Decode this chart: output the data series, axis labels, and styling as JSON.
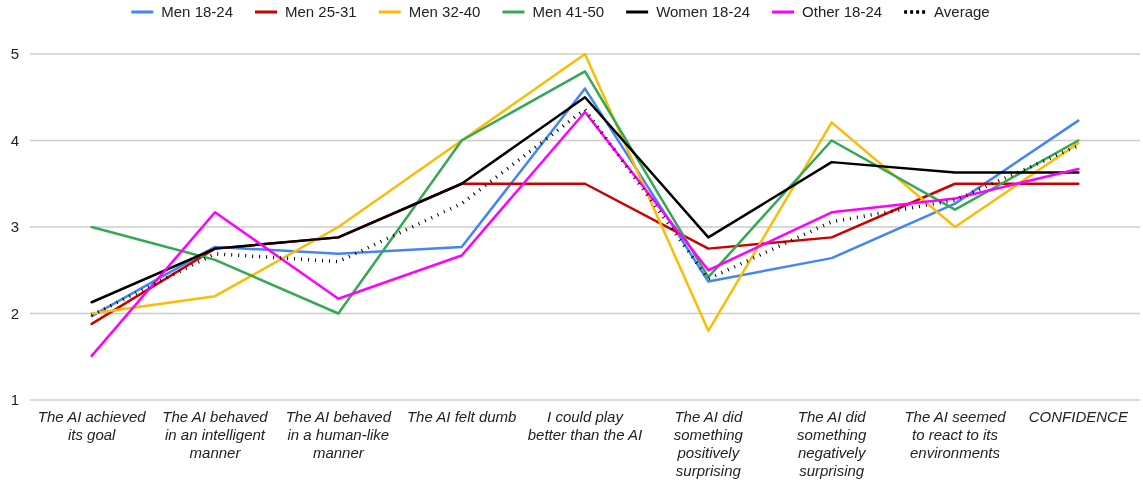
{
  "chart_data": {
    "type": "line",
    "categories": [
      "The AI achieved its goal",
      "The AI behaved in an intelligent manner",
      "The AI behaved in a human-like manner",
      "The AI felt dumb",
      "I could play better than the AI",
      "The AI did something positively surprising",
      "The AI did something negatively surprising",
      "The AI seemed to react to its environments",
      "CONFIDENCE"
    ],
    "series": [
      {
        "name": "Men 18-24",
        "color": "#4285f4",
        "values": [
          1.97,
          2.77,
          2.69,
          2.77,
          4.6,
          2.37,
          2.64,
          3.27,
          4.23
        ]
      },
      {
        "name": "Men 25-31",
        "color": "#cc0000",
        "values": [
          1.88,
          2.75,
          2.88,
          3.5,
          3.5,
          2.75,
          2.88,
          3.5,
          3.5
        ]
      },
      {
        "name": "Men 32-40",
        "color": "#fbbc04",
        "values": [
          2.0,
          2.2,
          3.0,
          4.0,
          5.0,
          1.8,
          4.21,
          3.0,
          3.97
        ]
      },
      {
        "name": "Men 41-50",
        "color": "#34a853",
        "values": [
          3.0,
          2.62,
          2.0,
          4.0,
          4.8,
          2.42,
          4.0,
          3.2,
          4.0
        ]
      },
      {
        "name": "Women 18-24",
        "color": "#000000",
        "values": [
          2.13,
          2.75,
          2.88,
          3.5,
          4.5,
          2.88,
          3.75,
          3.63,
          3.63
        ]
      },
      {
        "name": "Other 18-24",
        "color": "#ff00ff",
        "values": [
          1.51,
          3.17,
          2.17,
          2.67,
          4.33,
          2.5,
          3.17,
          3.33,
          3.67
        ]
      },
      {
        "name": "Average",
        "color": "#000000",
        "line_style": "dotted",
        "values": [
          1.98,
          2.69,
          2.6,
          3.27,
          4.36,
          2.4,
          3.06,
          3.31,
          3.94
        ]
      }
    ],
    "ylim": [
      1,
      5
    ],
    "yticks": [
      1,
      2,
      3,
      4,
      5
    ],
    "grid": "y",
    "legend": "top",
    "line_style": "solid",
    "marker": "none"
  }
}
